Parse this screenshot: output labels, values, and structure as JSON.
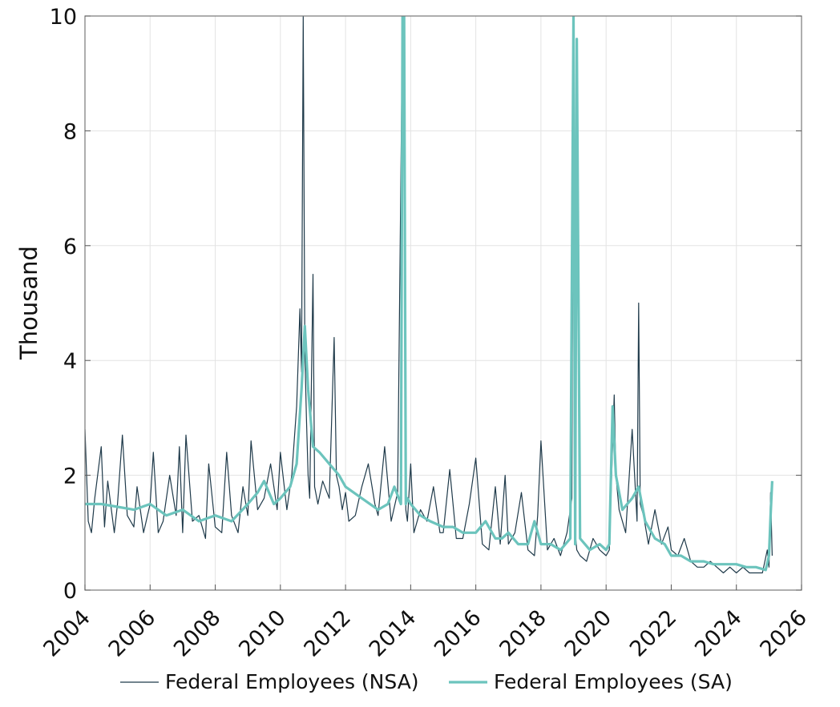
{
  "chart_data": {
    "type": "line",
    "title": "",
    "xlabel": "",
    "ylabel": "Thousand",
    "xlim": [
      2004,
      2026
    ],
    "ylim": [
      0,
      10
    ],
    "x_ticks": [
      "2004",
      "2006",
      "2008",
      "2010",
      "2012",
      "2014",
      "2016",
      "2018",
      "2020",
      "2022",
      "2024",
      "2026"
    ],
    "y_ticks": [
      "0",
      "2",
      "4",
      "6",
      "8",
      "10"
    ],
    "grid": true,
    "legend_position": "bottom",
    "series": [
      {
        "name": "Federal Employees (NSA)",
        "color": "#1f3a4a",
        "x": [
          2004.0,
          2004.1,
          2004.2,
          2004.3,
          2004.5,
          2004.6,
          2004.7,
          2004.9,
          2005.0,
          2005.15,
          2005.3,
          2005.5,
          2005.6,
          2005.8,
          2006.0,
          2006.1,
          2006.25,
          2006.4,
          2006.6,
          2006.8,
          2006.9,
          2007.0,
          2007.1,
          2007.3,
          2007.5,
          2007.7,
          2007.8,
          2008.0,
          2008.2,
          2008.35,
          2008.5,
          2008.7,
          2008.85,
          2009.0,
          2009.1,
          2009.3,
          2009.5,
          2009.7,
          2009.9,
          2010.0,
          2010.2,
          2010.35,
          2010.5,
          2010.6,
          2010.65,
          2010.7,
          2010.75,
          2010.8,
          2010.85,
          2010.9,
          2011.0,
          2011.05,
          2011.15,
          2011.3,
          2011.5,
          2011.65,
          2011.72,
          2011.8,
          2011.9,
          2012.0,
          2012.1,
          2012.3,
          2012.5,
          2012.7,
          2012.9,
          2013.0,
          2013.2,
          2013.4,
          2013.6,
          2013.75,
          2013.8,
          2013.85,
          2013.9,
          2014.0,
          2014.1,
          2014.3,
          2014.5,
          2014.7,
          2014.9,
          2015.0,
          2015.2,
          2015.4,
          2015.6,
          2015.8,
          2016.0,
          2016.2,
          2016.4,
          2016.6,
          2016.75,
          2016.9,
          2017.0,
          2017.2,
          2017.4,
          2017.6,
          2017.8,
          2017.9,
          2018.0,
          2018.2,
          2018.4,
          2018.6,
          2018.8,
          2018.95,
          2019.0,
          2019.05,
          2019.1,
          2019.2,
          2019.4,
          2019.6,
          2019.8,
          2020.0,
          2020.1,
          2020.25,
          2020.3,
          2020.4,
          2020.6,
          2020.8,
          2020.95,
          2021.0,
          2021.05,
          2021.15,
          2021.3,
          2021.5,
          2021.7,
          2021.9,
          2022.0,
          2022.2,
          2022.4,
          2022.6,
          2022.8,
          2023.0,
          2023.2,
          2023.4,
          2023.6,
          2023.8,
          2024.0,
          2024.2,
          2024.4,
          2024.6,
          2024.8,
          2024.95,
          2025.0,
          2025.05,
          2025.1
        ],
        "values": [
          2.8,
          1.2,
          1.0,
          1.6,
          2.5,
          1.1,
          1.9,
          1.0,
          1.5,
          2.7,
          1.3,
          1.1,
          1.8,
          1.0,
          1.5,
          2.4,
          1.0,
          1.2,
          2.0,
          1.3,
          2.5,
          1.0,
          2.7,
          1.2,
          1.3,
          0.9,
          2.2,
          1.1,
          1.0,
          2.4,
          1.3,
          1.0,
          1.8,
          1.3,
          2.6,
          1.4,
          1.6,
          2.2,
          1.4,
          2.4,
          1.4,
          2.0,
          3.2,
          4.9,
          3.8,
          10.0,
          4.2,
          3.0,
          2.0,
          1.6,
          5.5,
          1.8,
          1.5,
          1.9,
          1.6,
          4.4,
          2.0,
          1.8,
          1.4,
          1.7,
          1.2,
          1.3,
          1.8,
          2.2,
          1.5,
          1.3,
          2.5,
          1.2,
          1.7,
          10.0,
          10.0,
          1.4,
          1.2,
          2.2,
          1.0,
          1.4,
          1.2,
          1.8,
          1.0,
          1.0,
          2.1,
          0.9,
          0.9,
          1.5,
          2.3,
          0.8,
          0.7,
          1.8,
          0.8,
          2.0,
          0.8,
          1.0,
          1.7,
          0.7,
          0.6,
          1.3,
          2.6,
          0.7,
          0.9,
          0.6,
          1.0,
          1.6,
          10.0,
          1.0,
          0.7,
          0.6,
          0.5,
          0.9,
          0.7,
          0.6,
          0.7,
          3.4,
          2.0,
          1.4,
          1.0,
          2.8,
          1.2,
          5.0,
          1.5,
          1.3,
          0.8,
          1.4,
          0.8,
          1.1,
          0.7,
          0.6,
          0.9,
          0.5,
          0.4,
          0.4,
          0.5,
          0.4,
          0.3,
          0.4,
          0.3,
          0.4,
          0.3,
          0.3,
          0.3,
          0.7,
          0.4,
          1.7,
          0.6
        ]
      },
      {
        "name": "Federal Employees (SA)",
        "color": "#6cc4bd",
        "x": [
          2004.0,
          2004.5,
          2005.0,
          2005.5,
          2006.0,
          2006.5,
          2007.0,
          2007.5,
          2008.0,
          2008.5,
          2009.0,
          2009.3,
          2009.5,
          2009.8,
          2010.0,
          2010.3,
          2010.5,
          2010.65,
          2010.75,
          2010.85,
          2011.0,
          2011.2,
          2011.5,
          2011.8,
          2012.0,
          2012.5,
          2013.0,
          2013.3,
          2013.5,
          2013.7,
          2013.75,
          2013.8,
          2013.85,
          2013.9,
          2014.0,
          2014.3,
          2014.6,
          2015.0,
          2015.3,
          2015.6,
          2016.0,
          2016.3,
          2016.6,
          2016.8,
          2017.0,
          2017.3,
          2017.6,
          2017.8,
          2018.0,
          2018.3,
          2018.6,
          2018.9,
          2019.0,
          2019.05,
          2019.1,
          2019.2,
          2019.5,
          2019.8,
          2020.0,
          2020.1,
          2020.2,
          2020.3,
          2020.5,
          2020.8,
          2021.0,
          2021.2,
          2021.5,
          2021.8,
          2022.0,
          2022.3,
          2022.6,
          2023.0,
          2023.3,
          2023.6,
          2024.0,
          2024.3,
          2024.6,
          2024.9,
          2025.0,
          2025.05,
          2025.1
        ],
        "values": [
          1.5,
          1.5,
          1.45,
          1.4,
          1.5,
          1.3,
          1.4,
          1.2,
          1.3,
          1.2,
          1.5,
          1.7,
          1.9,
          1.5,
          1.6,
          1.8,
          2.2,
          3.5,
          4.6,
          3.5,
          2.5,
          2.4,
          2.2,
          2.0,
          1.8,
          1.6,
          1.4,
          1.5,
          1.8,
          1.5,
          10.0,
          10.0,
          1.5,
          1.6,
          1.5,
          1.3,
          1.2,
          1.1,
          1.1,
          1.0,
          1.0,
          1.2,
          0.9,
          0.9,
          1.0,
          0.8,
          0.8,
          1.2,
          0.8,
          0.8,
          0.7,
          0.9,
          10.0,
          0.8,
          9.6,
          0.9,
          0.7,
          0.8,
          0.7,
          0.8,
          3.2,
          2.0,
          1.4,
          1.6,
          1.8,
          1.2,
          0.9,
          0.8,
          0.6,
          0.6,
          0.5,
          0.5,
          0.45,
          0.45,
          0.45,
          0.4,
          0.4,
          0.35,
          0.6,
          1.3,
          1.9
        ]
      }
    ]
  }
}
